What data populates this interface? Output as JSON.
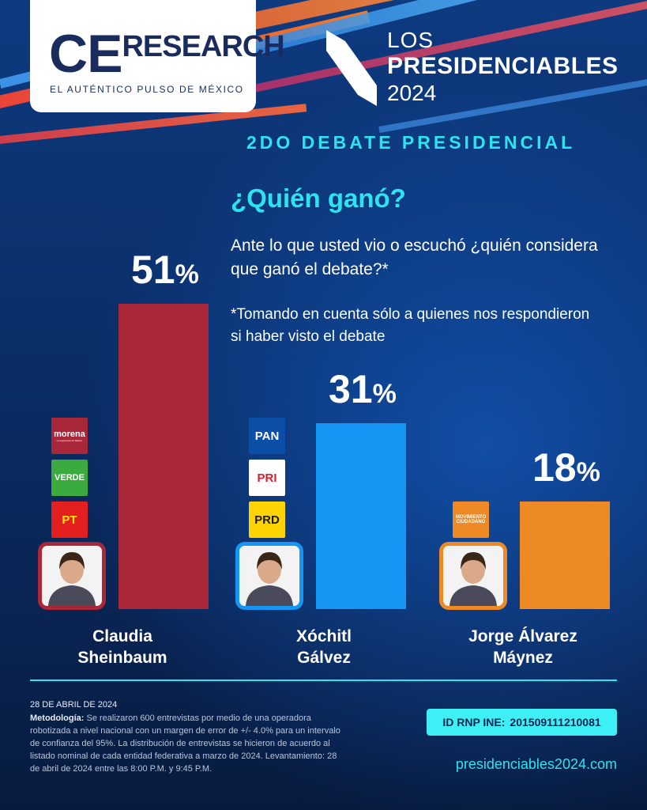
{
  "brand": {
    "logo_ce": "CE",
    "logo_research": "RESEARCH",
    "tagline": "EL AUTÉNTICO PULSO DE MÉXICO"
  },
  "header": {
    "title_line1": "LOS",
    "title_line2": "PRESIDENCIABLES",
    "title_line3": "2024",
    "subtitle": "2DO DEBATE PRESIDENCIAL"
  },
  "question": {
    "title": "¿Quién ganó?",
    "text": "Ante lo que usted vio o escuchó ¿quién considera que ganó el debate?*",
    "note": "*Tomando en cuenta sólo a quienes nos respondieron si haber visto el debate"
  },
  "chart_data": {
    "type": "bar",
    "title": "¿Quién ganó?",
    "categories": [
      "Claudia Sheinbaum",
      "Xóchitl Gálvez",
      "Jorge Álvarez Máynez"
    ],
    "values": [
      51,
      31,
      18
    ],
    "unit": "%",
    "bar_colors": [
      "#a8283a",
      "#1596f5",
      "#ee8a25"
    ],
    "ylim": [
      0,
      60
    ],
    "grid": false,
    "candidates": [
      {
        "name_line1": "Claudia",
        "name_line2": "Sheinbaum",
        "value_text": "51",
        "parties": [
          {
            "label": "morena",
            "sub": "La esperanza de México",
            "bg": "#a8283a",
            "fg": "#ffffff"
          },
          {
            "label": "VERDE",
            "bg": "#3bab3f",
            "fg": "#ffffff"
          },
          {
            "label": "PT",
            "bg": "#e3201f",
            "fg": "#ffe600"
          }
        ]
      },
      {
        "name_line1": "Xóchitl",
        "name_line2": "Gálvez",
        "value_text": "31",
        "parties": [
          {
            "label": "PAN",
            "bg": "#0a4ea8",
            "fg": "#ffffff"
          },
          {
            "label": "PRI",
            "bg": "#ffffff",
            "fg": "#d2202f"
          },
          {
            "label": "PRD",
            "bg": "#ffd400",
            "fg": "#1a1a1a"
          }
        ]
      },
      {
        "name_line1": "Jorge Álvarez",
        "name_line2": "Máynez",
        "value_text": "18",
        "parties": [
          {
            "label": "MOVIMIENTO CIUDADANO",
            "bg": "#ee8a25",
            "fg": "#ffffff"
          }
        ]
      }
    ]
  },
  "footer": {
    "date": "28 DE ABRIL DE 2024",
    "method_label": "Metodología:",
    "method_text": "Se realizaron 600 entrevistas por medio de una operadora robotizada a nivel nacional con un margen de error de +/- 4.0% para un intervalo de confianza del 95%. La distribución de entrevistas se hicieron de acuerdo al listado nominal de cada entidad federativa a marzo de 2024. Levantamiento: 28 de abril de 2024 entre las 8:00 P.M. y 9:45 P.M.",
    "rnp_label": "ID RNP INE:",
    "rnp_value": "201509111210081",
    "site": "presidenciables2024.com"
  }
}
